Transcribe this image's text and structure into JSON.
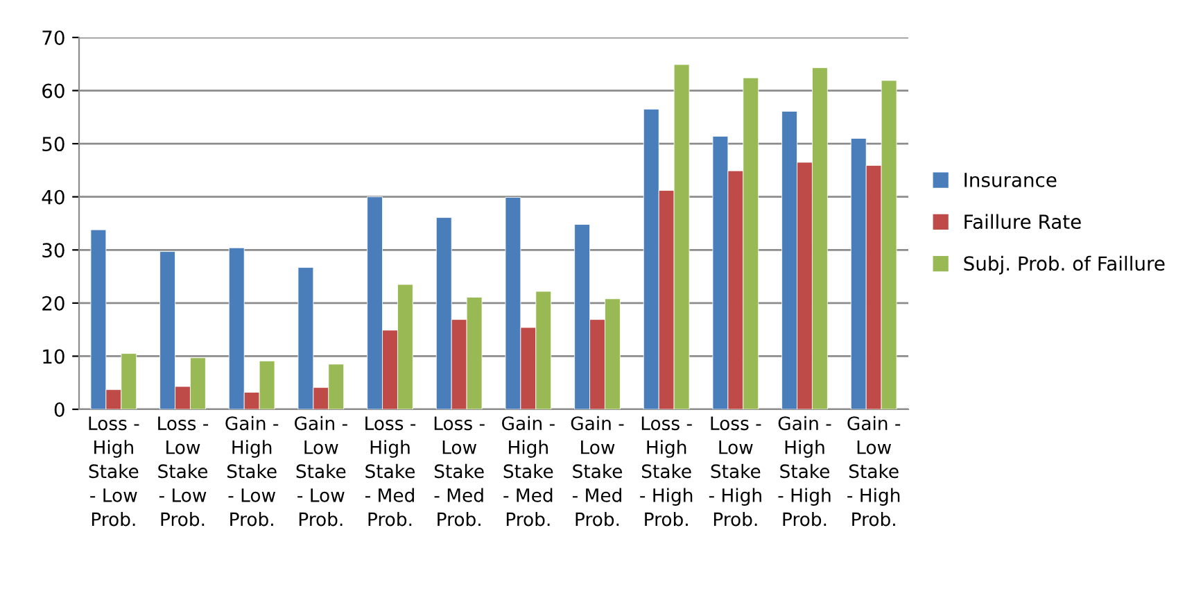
{
  "chart_data": {
    "type": "bar",
    "categories": [
      "Loss -\nHigh\nStake\n- Low\nProb.",
      "Loss -\nLow\nStake\n- Low\nProb.",
      "Gain -\nHigh\nStake\n- Low\nProb.",
      "Gain -\nLow\nStake\n- Low\nProb.",
      "Loss -\nHigh\nStake\n- Med\nProb.",
      "Loss -\nLow\nStake\n- Med\nProb.",
      "Gain -\nHigh\nStake\n- Med\nProb.",
      "Gain -\nLow\nStake\n- Med\nProb.",
      "Loss -\nHigh\nStake\n- High\nProb.",
      "Loss -\nLow\nStake\n- High\nProb.",
      "Gain -\nHigh\nStake\n- High\nProb.",
      "Gain -\nLow\nStake\n- High\nProb."
    ],
    "series": [
      {
        "name": "Insurance",
        "color": "#4a7ebb",
        "values": [
          33.8,
          29.7,
          30.4,
          26.7,
          40.0,
          36.1,
          39.9,
          34.8,
          56.5,
          51.4,
          56.1,
          51.0
        ]
      },
      {
        "name": "Faillure Rate",
        "color": "#be4b48",
        "values": [
          3.7,
          4.3,
          3.2,
          4.1,
          14.9,
          16.9,
          15.4,
          16.9,
          41.2,
          44.9,
          46.5,
          45.9
        ]
      },
      {
        "name": "Subj. Prob. of Faillure",
        "color": "#98b954",
        "values": [
          10.5,
          9.7,
          9.1,
          8.5,
          23.5,
          21.1,
          22.2,
          20.8,
          64.9,
          62.4,
          64.3,
          61.9
        ]
      }
    ],
    "ylim": [
      0,
      70
    ],
    "yticks": [
      0,
      10,
      20,
      30,
      40,
      50,
      60,
      70
    ],
    "grid": "y",
    "legend": "right"
  }
}
